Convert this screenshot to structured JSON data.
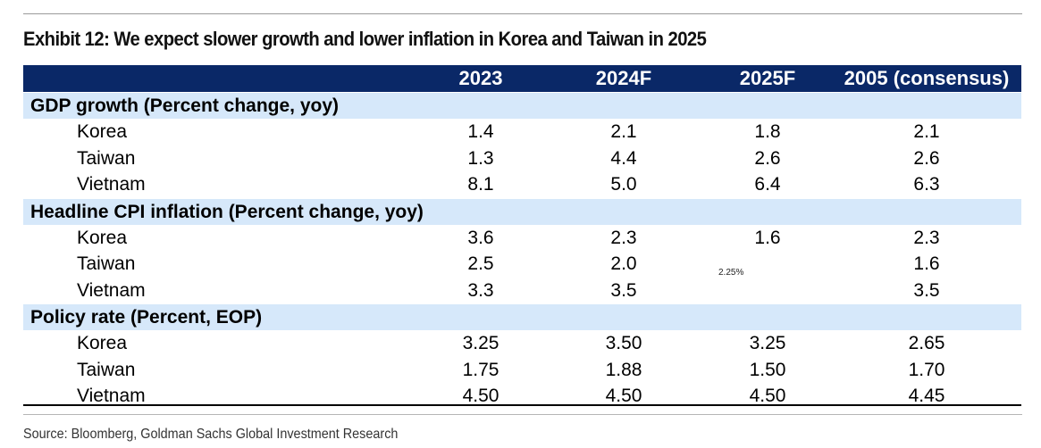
{
  "title": "Exhibit 12: We expect slower growth and lower inflation in Korea and Taiwan in 2025",
  "source": "Source: Bloomberg, Goldman Sachs Global Investment Research",
  "tooltip": "2.25%",
  "chart_data": {
    "type": "table",
    "title": "Exhibit 12: We expect slower growth and lower inflation in Korea and Taiwan in 2025",
    "columns": [
      "2023",
      "2024F",
      "2025F",
      "2005 (consensus)"
    ],
    "sections": [
      {
        "label": "GDP growth (Percent change, yoy)",
        "rows": [
          {
            "name": "Korea",
            "values": [
              "1.4",
              "2.1",
              "1.8",
              "2.1"
            ]
          },
          {
            "name": "Taiwan",
            "values": [
              "1.3",
              "4.4",
              "2.6",
              "2.6"
            ]
          },
          {
            "name": "Vietnam",
            "values": [
              "8.1",
              "5.0",
              "6.4",
              "6.3"
            ]
          }
        ]
      },
      {
        "label": "Headline CPI inflation (Percent change, yoy)",
        "rows": [
          {
            "name": "Korea",
            "values": [
              "3.6",
              "2.3",
              "1.6",
              "2.3"
            ]
          },
          {
            "name": "Taiwan",
            "values": [
              "2.5",
              "2.0",
              "",
              "1.6"
            ]
          },
          {
            "name": "Vietnam",
            "values": [
              "3.3",
              "3.5",
              "",
              "3.5"
            ]
          }
        ]
      },
      {
        "label": "Policy rate (Percent, EOP)",
        "rows": [
          {
            "name": "Korea",
            "values": [
              "3.25",
              "3.50",
              "3.25",
              "2.65"
            ]
          },
          {
            "name": "Taiwan",
            "values": [
              "1.75",
              "1.88",
              "1.50",
              "1.70"
            ]
          },
          {
            "name": "Vietnam",
            "values": [
              "4.50",
              "4.50",
              "4.50",
              "4.45"
            ]
          }
        ]
      }
    ],
    "colors": {
      "header_bg": "#0a2867",
      "section_bg": "#d6e8fa"
    }
  }
}
